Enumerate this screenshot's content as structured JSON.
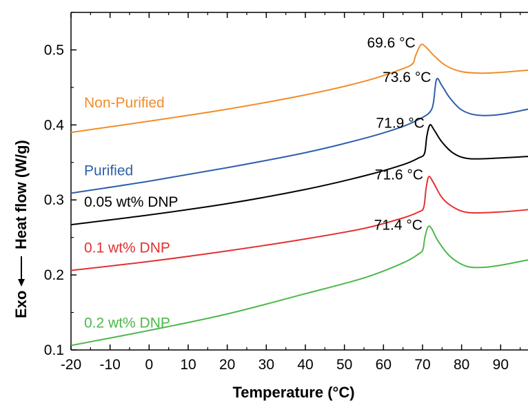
{
  "chart_data": {
    "type": "line",
    "title": "",
    "xlabel": "Temperature (°C)",
    "ylabel": "Heat flow (W/g)",
    "ylabel_prefix": "Exo",
    "xlim": [
      -20,
      97
    ],
    "ylim": [
      0.1,
      0.55
    ],
    "xticks": [
      -20,
      -10,
      0,
      10,
      20,
      30,
      40,
      50,
      60,
      70,
      80,
      90
    ],
    "yticks": [
      0.1,
      0.2,
      0.3,
      0.4,
      0.5
    ],
    "grid": false,
    "series": [
      {
        "name": "Non-Purified",
        "color": "#F28C28",
        "peak_label": "69.6 °C",
        "points": [
          [
            -20,
            0.39
          ],
          [
            0,
            0.405
          ],
          [
            20,
            0.421
          ],
          [
            40,
            0.44
          ],
          [
            55,
            0.458
          ],
          [
            65,
            0.475
          ],
          [
            67.5,
            0.482
          ],
          [
            68.2,
            0.492
          ],
          [
            69.6,
            0.507
          ],
          [
            71,
            0.503
          ],
          [
            73,
            0.492
          ],
          [
            76,
            0.479
          ],
          [
            80,
            0.471
          ],
          [
            85,
            0.469
          ],
          [
            90,
            0.47
          ],
          [
            97,
            0.473
          ]
        ]
      },
      {
        "name": "Purified",
        "color": "#2E5FAA",
        "peak_label": "73.6 °C",
        "points": [
          [
            -20,
            0.309
          ],
          [
            0,
            0.325
          ],
          [
            20,
            0.343
          ],
          [
            40,
            0.363
          ],
          [
            55,
            0.382
          ],
          [
            65,
            0.398
          ],
          [
            70,
            0.41
          ],
          [
            72,
            0.418
          ],
          [
            72.8,
            0.43
          ],
          [
            73.6,
            0.461
          ],
          [
            75,
            0.452
          ],
          [
            77,
            0.436
          ],
          [
            80,
            0.42
          ],
          [
            84,
            0.413
          ],
          [
            90,
            0.414
          ],
          [
            97,
            0.421
          ]
        ]
      },
      {
        "name": "0.05 wt% DNP",
        "color": "#000000",
        "peak_label": "71.9 °C",
        "points": [
          [
            -20,
            0.267
          ],
          [
            0,
            0.28
          ],
          [
            20,
            0.295
          ],
          [
            40,
            0.314
          ],
          [
            55,
            0.332
          ],
          [
            65,
            0.347
          ],
          [
            69,
            0.356
          ],
          [
            70.5,
            0.362
          ],
          [
            71.1,
            0.385
          ],
          [
            71.9,
            0.4
          ],
          [
            73,
            0.393
          ],
          [
            75,
            0.377
          ],
          [
            78,
            0.362
          ],
          [
            82,
            0.355
          ],
          [
            90,
            0.356
          ],
          [
            97,
            0.358
          ]
        ]
      },
      {
        "name": "0.1 wt% DNP",
        "color": "#E53030",
        "peak_label": "71.6 °C",
        "points": [
          [
            -20,
            0.206
          ],
          [
            0,
            0.218
          ],
          [
            20,
            0.232
          ],
          [
            40,
            0.248
          ],
          [
            55,
            0.262
          ],
          [
            65,
            0.276
          ],
          [
            69,
            0.284
          ],
          [
            70.3,
            0.29
          ],
          [
            70.9,
            0.315
          ],
          [
            71.6,
            0.331
          ],
          [
            72.8,
            0.323
          ],
          [
            75,
            0.303
          ],
          [
            78,
            0.29
          ],
          [
            82,
            0.283
          ],
          [
            90,
            0.284
          ],
          [
            97,
            0.287
          ]
        ]
      },
      {
        "name": "0.2 wt% DNP",
        "color": "#4CB848",
        "peak_label": "71.4 °C",
        "points": [
          [
            -20,
            0.106
          ],
          [
            0,
            0.126
          ],
          [
            20,
            0.148
          ],
          [
            40,
            0.175
          ],
          [
            55,
            0.196
          ],
          [
            65,
            0.216
          ],
          [
            69,
            0.228
          ],
          [
            70.1,
            0.234
          ],
          [
            70.6,
            0.25
          ],
          [
            71.4,
            0.264
          ],
          [
            72.3,
            0.262
          ],
          [
            74,
            0.245
          ],
          [
            77,
            0.225
          ],
          [
            81,
            0.212
          ],
          [
            85,
            0.21
          ],
          [
            90,
            0.213
          ],
          [
            97,
            0.22
          ]
        ]
      }
    ]
  }
}
